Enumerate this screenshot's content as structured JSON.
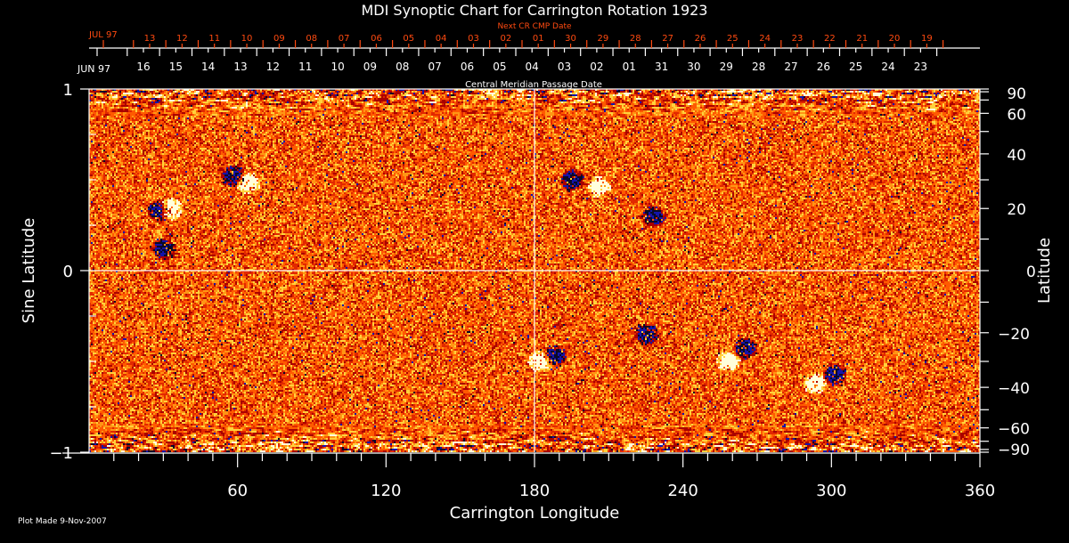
{
  "chart_data": {
    "type": "heatmap",
    "title": "MDI Synoptic Chart for Carrington Rotation 1923",
    "xlabel": "Carrington Longitude",
    "ylabel": "Sine Latitude",
    "y2label": "Latitude",
    "xlim": [
      0,
      360
    ],
    "ylim": [
      -1,
      1
    ],
    "x_ticks": [
      60,
      120,
      180,
      240,
      300,
      360
    ],
    "y_ticks": [
      "1",
      "0",
      "−1"
    ],
    "y2_ticks": [
      90,
      60,
      40,
      20,
      0,
      -20,
      -40,
      -60,
      -90
    ],
    "grid": "lines at longitude 180 and sine latitude 0",
    "colormap": [
      "#1010a0",
      "#000020",
      "#c00000",
      "#ff5a00",
      "#ffb020",
      "#ffffa0",
      "#ffffff"
    ],
    "top_axis_cmp": {
      "label": "Central Meridian Passage Date",
      "month_label": "JUN 97",
      "dates": [
        "16",
        "15",
        "14",
        "13",
        "12",
        "11",
        "10",
        "09",
        "08",
        "07",
        "06",
        "05",
        "04",
        "03",
        "02",
        "01",
        "31",
        "30",
        "29",
        "28",
        "27",
        "26",
        "25",
        "24",
        "23"
      ]
    },
    "top_axis_next": {
      "label": "Next CR CMP Date",
      "month_label": "JUL 97",
      "dates": [
        "13",
        "12",
        "11",
        "10",
        "09",
        "08",
        "07",
        "06",
        "05",
        "04",
        "03",
        "02",
        "01",
        "30",
        "29",
        "28",
        "27",
        "26",
        "25",
        "24",
        "23",
        "22",
        "21",
        "20",
        "19"
      ]
    }
  },
  "footer": {
    "plot_made": "Plot Made  9-Nov-2007"
  }
}
